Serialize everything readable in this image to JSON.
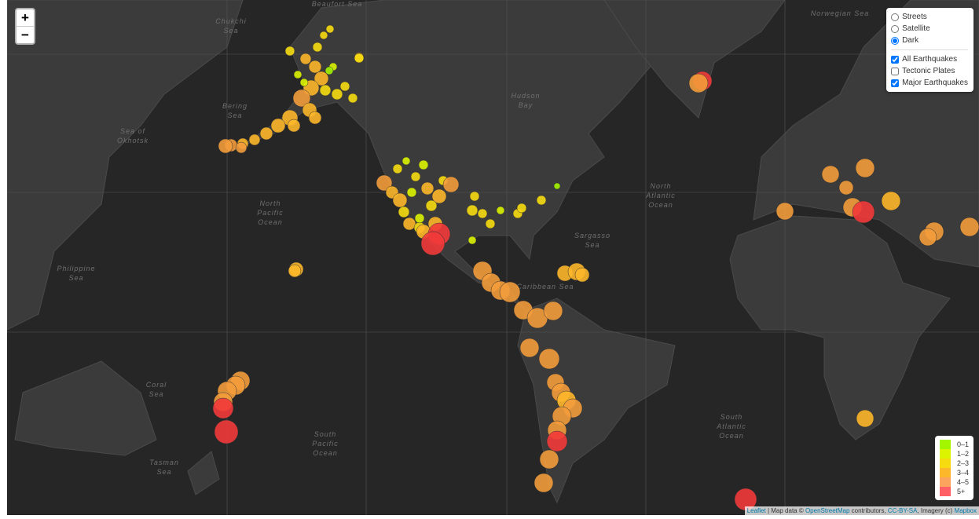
{
  "zoom": {
    "in": "+",
    "out": "−"
  },
  "base_layers": [
    {
      "label": "Streets",
      "selected": false
    },
    {
      "label": "Satellite",
      "selected": false
    },
    {
      "label": "Dark",
      "selected": true
    }
  ],
  "overlays": [
    {
      "label": "All Earthquakes",
      "checked": true
    },
    {
      "label": "Tectonic Plates",
      "checked": false
    },
    {
      "label": "Major Earthquakes",
      "checked": true
    }
  ],
  "legend": [
    {
      "label": "0–1",
      "color": "#a3f600"
    },
    {
      "label": "1–2",
      "color": "#dcf400"
    },
    {
      "label": "2–3",
      "color": "#f7db11"
    },
    {
      "label": "3–4",
      "color": "#fdb72a"
    },
    {
      "label": "4–5",
      "color": "#fca35d"
    },
    {
      "label": "5+",
      "color": "#ff5f65"
    }
  ],
  "places": [
    {
      "lines": [
        "North",
        "Pacific",
        "Ocean"
      ]
    },
    {
      "lines": [
        "North",
        "Atlantic",
        "Ocean"
      ]
    },
    {
      "lines": [
        "South",
        "Pacific",
        "Ocean"
      ]
    },
    {
      "lines": [
        "South",
        "Atlantic",
        "Ocean"
      ]
    },
    {
      "lines": [
        "Sea of",
        "Okhotsk"
      ]
    },
    {
      "lines": [
        "Bering",
        "Sea"
      ]
    },
    {
      "lines": [
        "Coral",
        "Sea"
      ]
    },
    {
      "lines": [
        "Tasman",
        "Sea"
      ]
    },
    {
      "lines": [
        "Philippine",
        "Sea"
      ]
    },
    {
      "lines": [
        "Sargasso",
        "Sea"
      ]
    },
    {
      "lines": [
        "Caribbean Sea"
      ]
    },
    {
      "lines": [
        "Chukchi",
        "Sea"
      ]
    },
    {
      "lines": [
        "Beaufort Sea"
      ]
    },
    {
      "lines": [
        "Hudson",
        "Bay"
      ]
    },
    {
      "lines": [
        "Norwegian Sea"
      ]
    }
  ],
  "attribution": {
    "leaflet": "Leaflet",
    "text1": " | Map data © ",
    "osm": "OpenStreetMap",
    "text2": " contributors, ",
    "license": "CC-BY-SA",
    "text3": ", Imagery (c) ",
    "mapbox": "Mapbox"
  }
}
